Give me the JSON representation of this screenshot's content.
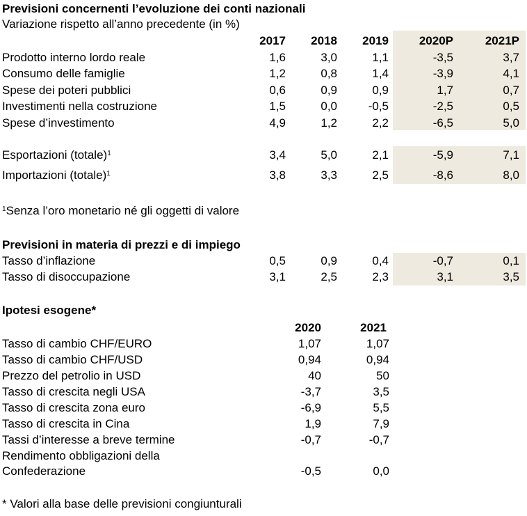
{
  "section1": {
    "title": "Previsioni concernenti l’evoluzione dei conti nazionali",
    "subtitle": "Variazione rispetto all’anno precedente (in %)",
    "columns": [
      "2017",
      "2018",
      "2019",
      "2020P",
      "2021P"
    ],
    "rows": [
      {
        "label": "Prodotto interno lordo reale",
        "sup": "",
        "values": [
          "1,6",
          "3,0",
          "1,1",
          "-3,5",
          "3,7"
        ]
      },
      {
        "label": "Consumo delle famiglie",
        "sup": "",
        "values": [
          "1,2",
          "0,8",
          "1,4",
          "-3,9",
          "4,1"
        ]
      },
      {
        "label": "Spese dei poteri pubblici",
        "sup": "",
        "values": [
          "0,6",
          "0,9",
          "0,9",
          "1,7",
          "0,7"
        ]
      },
      {
        "label": "Investimenti nella costruzione",
        "sup": "",
        "values": [
          "1,5",
          "0,0",
          "-0,5",
          "-2,5",
          "0,5"
        ]
      },
      {
        "label": "Spese d’investimento",
        "sup": "",
        "values": [
          "4,9",
          "1,2",
          "2,2",
          "-6,5",
          "5,0"
        ]
      },
      {
        "label": "Esportazioni (totale)",
        "sup": "1",
        "values": [
          "3,4",
          "5,0",
          "2,1",
          "-5,9",
          "7,1"
        ]
      },
      {
        "label": "Importazioni (totale)",
        "sup": "1",
        "values": [
          "3,8",
          "3,3",
          "2,5",
          "-8,6",
          "8,0"
        ]
      }
    ],
    "footnote_mark": "1",
    "footnote": "Senza l’oro monetario né gli oggetti di valore"
  },
  "section2": {
    "title": "Previsioni in materia di prezzi e di impiego",
    "rows": [
      {
        "label": "Tasso d’inflazione",
        "values": [
          "0,5",
          "0,9",
          "0,4",
          "-0,7",
          "0,1"
        ]
      },
      {
        "label": "Tasso di disoccupazione",
        "values": [
          "3,1",
          "2,5",
          "2,3",
          "3,1",
          "3,5"
        ]
      }
    ]
  },
  "section3": {
    "title": "Ipotesi esogene*",
    "columns": [
      "2020",
      "2021"
    ],
    "rows": [
      {
        "label": "Tasso di cambio CHF/EURO",
        "values": [
          "1,07",
          "1,07"
        ]
      },
      {
        "label": "Tasso di cambio CHF/USD",
        "values": [
          "0,94",
          "0,94"
        ]
      },
      {
        "label": "Prezzo del petrolio in USD",
        "values": [
          "40",
          "50"
        ]
      },
      {
        "label": "Tasso di crescita negli USA",
        "values": [
          "-3,7",
          "3,5"
        ]
      },
      {
        "label": "Tasso di crescita zona euro",
        "values": [
          "-6,9",
          "5,5"
        ]
      },
      {
        "label": "Tasso di crescita in Cina",
        "values": [
          "1,9",
          "7,9"
        ]
      },
      {
        "label": "Tassi d’interesse a breve termine",
        "values": [
          "-0,7",
          "-0,7"
        ]
      }
    ],
    "last_row": {
      "label_line1": "Rendimento obbligazioni della",
      "label_line2": "Confederazione",
      "values": [
        "-0,5",
        "0,0"
      ]
    },
    "footnote": "* Valori alla base delle previsioni congiunturali"
  },
  "colors": {
    "shade": "#eeeadf",
    "text": "#000000"
  }
}
